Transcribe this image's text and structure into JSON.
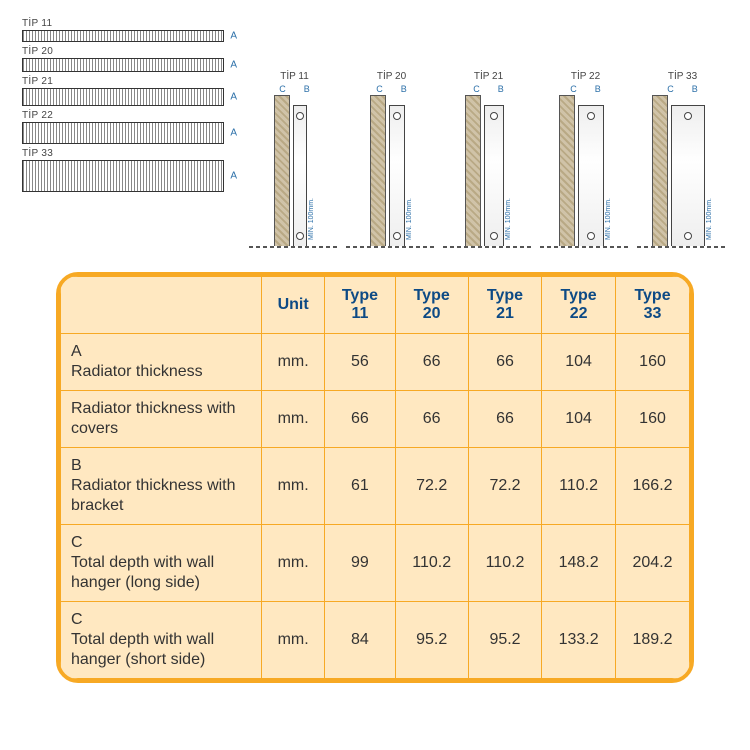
{
  "diagrams": {
    "left_labels": [
      "TİP 11",
      "TİP 20",
      "TİP 21",
      "TİP 22",
      "TİP 33"
    ],
    "cross_labels": [
      "TİP 11",
      "TİP 20",
      "TİP 21",
      "TİP 22",
      "TİP 33"
    ],
    "dim_c": "C",
    "dim_b": "B",
    "min_label": "MİN. 100mm."
  },
  "table": {
    "headers": {
      "blank": "",
      "unit": "Unit",
      "types": [
        "Type 11",
        "Type 20",
        "Type 21",
        "Type 22",
        "Type 33"
      ]
    },
    "rows": [
      {
        "label": "A\nRadiator thickness",
        "unit": "mm.",
        "vals": [
          "56",
          "66",
          "66",
          "104",
          "160"
        ]
      },
      {
        "label": "Radiator thickness with covers",
        "unit": "mm.",
        "vals": [
          "66",
          "66",
          "66",
          "104",
          "160"
        ]
      },
      {
        "label": "B\nRadiator thickness with bracket",
        "unit": "mm.",
        "vals": [
          "61",
          "72.2",
          "72.2",
          "110.2",
          "166.2"
        ]
      },
      {
        "label": "C\nTotal depth with wall hanger (long side)",
        "unit": "mm.",
        "vals": [
          "99",
          "110.2",
          "110.2",
          "148.2",
          "204.2"
        ]
      },
      {
        "label": "C\nTotal depth with wall hanger (short side)",
        "unit": "mm.",
        "vals": [
          "84",
          "95.2",
          "95.2",
          "133.2",
          "189.2"
        ]
      }
    ]
  },
  "colors": {
    "accent": "#f7a924",
    "table_bg": "#ffe8c1",
    "header_text": "#0d4a85",
    "dim_blue": "#2b6fa8"
  }
}
